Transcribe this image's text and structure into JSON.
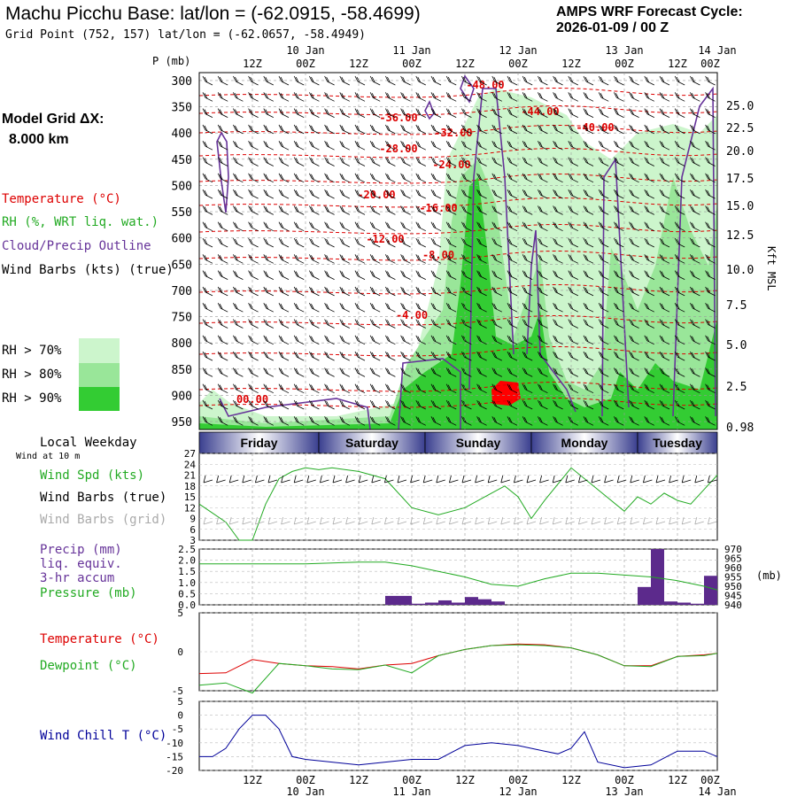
{
  "header": {
    "title": "Machu Picchu Base:  lat/lon = (-62.0915, -58.4699)",
    "subtitle": "Grid Point (752, 157) lat/lon = (-62.0657, -58.4949)",
    "cycle_line1": "AMPS WRF Forecast Cycle:",
    "cycle_line2": "2026-01-09 / 00  Z"
  },
  "left_labels": {
    "p_mb": "P (mb)",
    "model_grid": "Model Grid ΔX:",
    "grid_km": "8.000 km",
    "temperature": "Temperature (°C)",
    "rh": "RH (%, WRT liq. wat.)",
    "cloud": "Cloud/Precip Outline",
    "wind_barbs": "Wind Barbs (kts) (true)",
    "rh70": "RH > 70%",
    "rh80": "RH > 80%",
    "rh90": "RH > 90%",
    "local_weekday": "Local Weekday",
    "wind_10m": "Wind at 10 m",
    "wind_spd": "Wind Spd (kts)",
    "wind_barbs_true": "Wind Barbs (true)",
    "wind_barbs_grid": "Wind Barbs (grid)",
    "precip1": "Precip (mm)",
    "precip2": "liq. equiv.",
    "precip3": "3-hr accum",
    "pressure": "Pressure (mb)",
    "temp2": "Temperature (°C)",
    "dewpoint": "Dewpoint (°C)",
    "windchill": "Wind Chill T (°C)",
    "kft": "Kft MSL",
    "mb_unit": "(mb)"
  },
  "colors": {
    "rh70": "#ccf5cc",
    "rh80": "#99e699",
    "rh90": "#33cc33",
    "temperature": "#dd0000",
    "rh_text": "#22aa22",
    "cloud": "#663399",
    "grey": "#aaaaaa",
    "windchill": "#000099",
    "precip": "#5c2a8c"
  },
  "time_axis": {
    "tick_labels": [
      "12Z",
      "00Z",
      "12Z",
      "00Z",
      "12Z",
      "00Z",
      "12Z",
      "00Z",
      "12Z",
      "00Z"
    ],
    "date_labels": [
      "10 Jan",
      "11 Jan",
      "12 Jan",
      "13 Jan",
      "14 Jan"
    ]
  },
  "weekdays": [
    "Friday",
    "Saturday",
    "Sunday",
    "Monday",
    "Tuesday"
  ],
  "chart_data": [
    {
      "type": "heatmap",
      "name": "vertical cross-section",
      "pressure_levels": [
        300,
        350,
        400,
        450,
        500,
        550,
        600,
        650,
        700,
        750,
        800,
        850,
        900,
        950
      ],
      "kft_ticks": [
        "25.0",
        "22.5",
        "20.0",
        "17.5",
        "15.0",
        "12.5",
        "10.0",
        "7.5",
        "5.0",
        "2.5",
        "0.98"
      ],
      "temperature_contour_labels": [
        "-48.00",
        "-44.00",
        "-40.00",
        "-36.00",
        "-32.00",
        "-28.00",
        "-24.00",
        "-20.00",
        "-16.00",
        "-12.00",
        "-8.00",
        "-4.00",
        "00.00"
      ]
    },
    {
      "type": "line",
      "name": "wind speed 10 m",
      "yticks": [
        3,
        6,
        9,
        12,
        15,
        18,
        21,
        24,
        27
      ],
      "ylim": [
        3,
        27
      ],
      "x_hours": [
        0,
        6,
        9,
        12,
        15,
        18,
        21,
        24,
        27,
        30,
        36,
        42,
        48,
        54,
        60,
        66,
        69,
        72,
        75,
        78,
        84,
        90,
        96,
        99,
        102,
        105,
        108,
        111,
        114,
        117
      ],
      "values": [
        13,
        8,
        3,
        3,
        13,
        20,
        22,
        23,
        22.5,
        23,
        22,
        20,
        12,
        10,
        12,
        16,
        18,
        15,
        9,
        14,
        23,
        17,
        11,
        15,
        13,
        16,
        14,
        13,
        17,
        21
      ]
    },
    {
      "type": "bar",
      "name": "precip and pressure",
      "precip_yticks": [
        "2.5",
        "2.0",
        "1.5",
        "1.0",
        "0.5",
        "0.0"
      ],
      "precip_ylim": [
        0,
        2.5
      ],
      "pressure_yticks": [
        "970",
        "965",
        "960",
        "955",
        "950",
        "945",
        "940"
      ],
      "pressure_ylim": [
        940,
        970
      ],
      "precip_x_hours": [
        45,
        48,
        51,
        54,
        57,
        60,
        63,
        66,
        69,
        87,
        90,
        93,
        96,
        99,
        102,
        105,
        108,
        111,
        114,
        117
      ],
      "precip_values": [
        0.4,
        0.4,
        0.05,
        0.1,
        0.2,
        0.1,
        0.35,
        0.25,
        0.15,
        0.0,
        0.0,
        0.0,
        0.0,
        0.0,
        0.8,
        2.5,
        0.15,
        0.1,
        0.05,
        1.3
      ],
      "pressure_x_hours": [
        0,
        12,
        24,
        36,
        42,
        48,
        54,
        60,
        66,
        72,
        78,
        84,
        90,
        96,
        102,
        108,
        114,
        117
      ],
      "pressure_values": [
        962,
        962,
        962,
        963,
        963,
        961,
        958,
        955,
        951,
        950,
        954,
        957,
        957,
        956,
        955,
        953,
        950,
        948
      ]
    },
    {
      "type": "line",
      "name": "temperature dewpoint",
      "yticks": [
        "5",
        "0",
        "-5"
      ],
      "ylim": [
        -5,
        5
      ],
      "x_hours": [
        0,
        6,
        12,
        18,
        24,
        30,
        36,
        42,
        48,
        54,
        60,
        66,
        72,
        78,
        84,
        90,
        96,
        102,
        108,
        114,
        117
      ],
      "temperature": [
        -2.8,
        -2.7,
        -1,
        -1.5,
        -1.8,
        -1.9,
        -2.2,
        -1.7,
        -1.5,
        -0.5,
        0.3,
        0.8,
        1,
        0.9,
        0.5,
        -0.4,
        -1.8,
        -1.8,
        -0.6,
        -0.4,
        -0.2
      ],
      "dewpoint": [
        -4.3,
        -4,
        -5.3,
        -1.5,
        -1.8,
        -2.2,
        -2.3,
        -1.7,
        -2.7,
        -0.5,
        0.3,
        0.8,
        0.9,
        0.8,
        0.5,
        -0.4,
        -1.8,
        -1.9,
        -0.6,
        -0.5,
        -0.2
      ]
    },
    {
      "type": "line",
      "name": "wind chill",
      "yticks": [
        "5",
        "0",
        "-5",
        "-10",
        "-15",
        "-20"
      ],
      "ylim": [
        -20,
        5
      ],
      "x_hours": [
        0,
        3,
        6,
        9,
        12,
        15,
        18,
        21,
        24,
        30,
        36,
        42,
        48,
        54,
        60,
        66,
        72,
        78,
        81,
        84,
        87,
        90,
        96,
        102,
        108,
        114,
        117
      ],
      "values": [
        -15,
        -15,
        -12,
        -5,
        0,
        0,
        -5,
        -15,
        -16,
        -17,
        -18,
        -17,
        -16,
        -16,
        -11,
        -10,
        -11,
        -13,
        -14,
        -12,
        -6,
        -17,
        -19,
        -18,
        -13,
        -13,
        -15
      ]
    }
  ]
}
